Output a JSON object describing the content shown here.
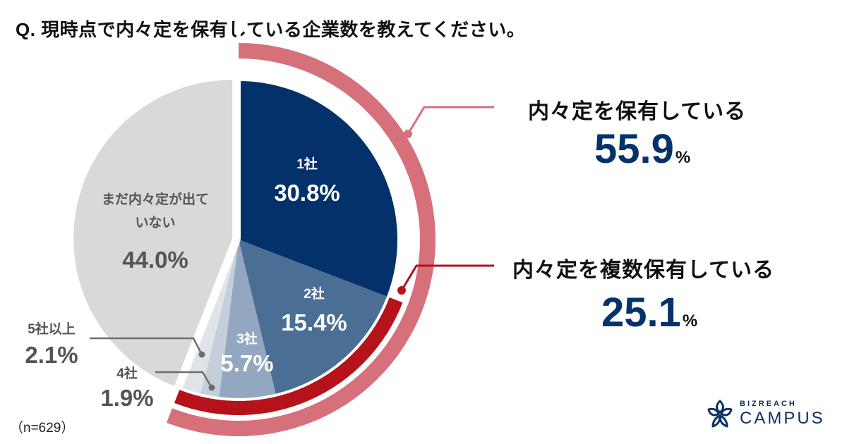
{
  "title": "Q. 現時点で内々定を保有している企業数を教えてください。",
  "sample_size": "（n=629）",
  "summary": {
    "holding": {
      "label": "内々定を保有している",
      "value": "55.9",
      "unit": "%"
    },
    "multiple": {
      "label": "内々定を複数保有している",
      "value": "25.1",
      "unit": "%"
    }
  },
  "slices": [
    {
      "label": "1社",
      "pct": "30.8%"
    },
    {
      "label": "2社",
      "pct": "15.4%"
    },
    {
      "label": "3社",
      "pct": "5.7%"
    },
    {
      "label": "4社",
      "pct": "1.9%"
    },
    {
      "label": "5社以上",
      "pct": "2.1%"
    },
    {
      "label_line1": "まだ内々定が出て",
      "label_line2": "いない",
      "pct": "44.0%"
    }
  ],
  "logo": {
    "sub": "BIZREACH",
    "main": "CAMPUS"
  },
  "colors": {
    "one": "#04316a",
    "two": "#4b6e94",
    "three": "#93a8c0",
    "four": "#c5cfdb",
    "five": "#dfe4ea",
    "none": "#d9d9d9",
    "ring_outer": "#d6707a",
    "ring_inner": "#b5121b",
    "accent_value": "#06326a"
  },
  "chart_data": {
    "type": "pie",
    "title": "Q. 現時点で内々定を保有している企業数を教えてください。",
    "categories": [
      "1社",
      "2社",
      "3社",
      "4社",
      "5社以上",
      "まだ内々定が出ていない"
    ],
    "values": [
      30.8,
      15.4,
      5.7,
      1.9,
      2.1,
      44.0
    ],
    "unit": "%",
    "n": 629,
    "annotations": [
      {
        "label": "内々定を保有している",
        "value": 55.9,
        "covers": [
          "1社",
          "2社",
          "3社",
          "4社",
          "5社以上"
        ]
      },
      {
        "label": "内々定を複数保有している",
        "value": 25.1,
        "covers": [
          "2社",
          "3社",
          "4社",
          "5社以上"
        ]
      }
    ]
  }
}
